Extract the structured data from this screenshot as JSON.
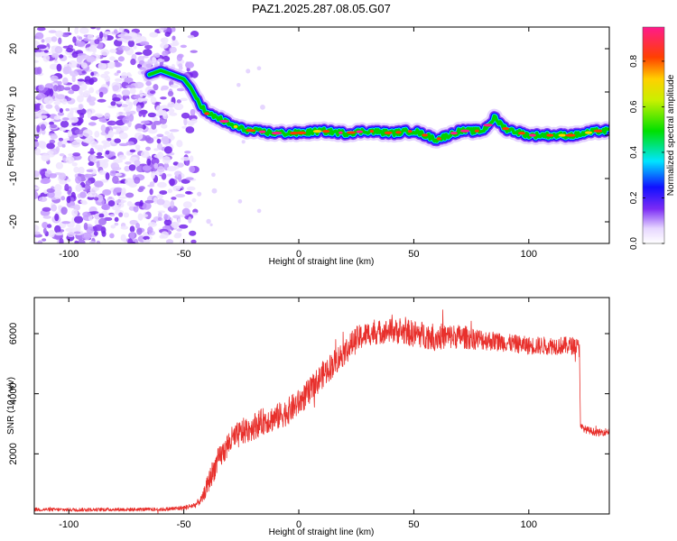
{
  "figure_title": "PAZ1.2025.287.08.05.G07",
  "chart_data": [
    {
      "type": "heatmap",
      "title": "PAZ1.2025.287.08.05.G07",
      "xlabel": "Height of straight line (km)",
      "ylabel": "Frequency (Hz)",
      "xlim": [
        -115,
        135
      ],
      "ylim": [
        -25,
        25
      ],
      "xticks": [
        -100,
        -50,
        0,
        50,
        100
      ],
      "yticks": [
        -20,
        -10,
        0,
        10,
        20
      ],
      "xticklabels": [
        "-100",
        "-50",
        "0",
        "50",
        "100"
      ],
      "yticklabels": [
        "-20",
        "-10",
        "0",
        "10",
        "20"
      ],
      "grid": false,
      "ridge": {
        "name": "spectral peak frequency",
        "x": [
          -65,
          -60,
          -55,
          -50,
          -47,
          -45,
          -40,
          -35,
          -30,
          -25,
          -20,
          -10,
          0,
          10,
          20,
          30,
          40,
          50,
          55,
          60,
          70,
          80,
          85,
          90,
          100,
          110,
          120,
          130,
          135
        ],
        "y": [
          14,
          15,
          14,
          13,
          11,
          9,
          5,
          4,
          2.5,
          1.5,
          1,
          0.5,
          0.5,
          1,
          0.5,
          1,
          0.5,
          1,
          0,
          -1,
          1,
          1,
          4,
          1.5,
          0,
          0,
          0,
          1,
          1
        ]
      },
      "noise_region": {
        "x_range": [
          -115,
          -45
        ],
        "y_range": [
          -25,
          25
        ]
      },
      "colorbar": {
        "label": "Normalized spectral amplitude",
        "range": [
          0,
          0.95
        ],
        "ticks": [
          0.0,
          0.2,
          0.4,
          0.6,
          0.8
        ],
        "ticklabels": [
          "0.0",
          "0.2",
          "0.4",
          "0.6",
          "0.8"
        ]
      }
    },
    {
      "type": "line",
      "title": "",
      "xlabel": "Height of straight line (km)",
      "ylabel": "SNR (10 * v/v)",
      "xlim": [
        -115,
        135
      ],
      "ylim": [
        0,
        7200
      ],
      "xticks": [
        -100,
        -50,
        0,
        50,
        100
      ],
      "yticks": [
        2000,
        4000,
        6000
      ],
      "xticklabels": [
        "-100",
        "-50",
        "0",
        "50",
        "100"
      ],
      "yticklabels": [
        "2000",
        "4000",
        "6000"
      ],
      "grid": false,
      "series": [
        {
          "name": "SNR",
          "color": "#e8302c",
          "x": [
            -115,
            -100,
            -80,
            -60,
            -50,
            -45,
            -42,
            -40,
            -38,
            -35,
            -30,
            -25,
            -20,
            -15,
            -10,
            -5,
            0,
            5,
            10,
            15,
            20,
            25,
            30,
            40,
            50,
            60,
            70,
            80,
            90,
            100,
            110,
            120,
            122,
            122.5,
            125,
            130,
            135
          ],
          "y": [
            150,
            140,
            150,
            150,
            200,
            300,
            500,
            900,
            1300,
            1800,
            2400,
            2700,
            2900,
            3100,
            3200,
            3400,
            3700,
            4100,
            4600,
            5000,
            5400,
            5800,
            6000,
            6100,
            6000,
            5900,
            5900,
            5800,
            5700,
            5600,
            5600,
            5600,
            5500,
            2900,
            2800,
            2700,
            2750
          ],
          "noise_amplitude": [
            60,
            60,
            60,
            60,
            80,
            100,
            150,
            300,
            400,
            400,
            450,
            450,
            450,
            450,
            450,
            450,
            450,
            450,
            450,
            450,
            450,
            450,
            400,
            400,
            450,
            450,
            400,
            350,
            300,
            300,
            300,
            300,
            300,
            120,
            120,
            120,
            120
          ]
        }
      ]
    }
  ]
}
